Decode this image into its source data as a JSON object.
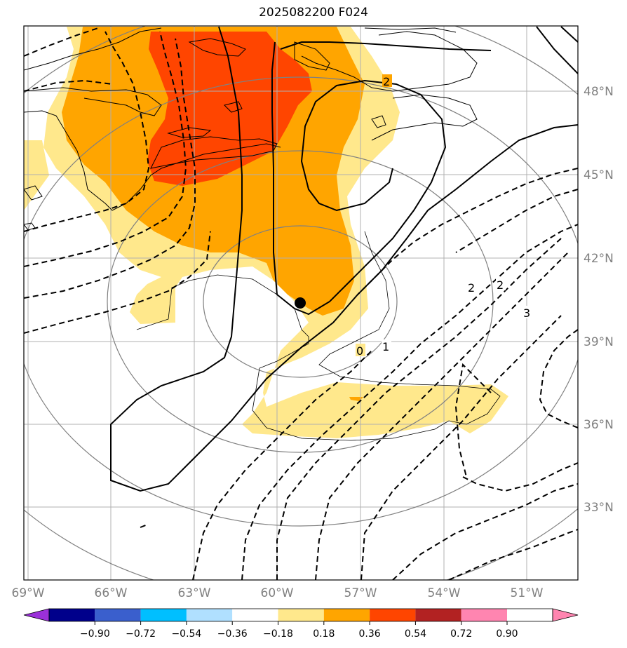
{
  "title": "2025082200 F024",
  "map": {
    "lon_ticks": [
      "69°W",
      "66°W",
      "63°W",
      "60°W",
      "57°W",
      "54°W",
      "51°W"
    ],
    "lat_ticks": [
      "48°N",
      "45°N",
      "42°N",
      "39°N",
      "36°N",
      "33°N"
    ],
    "marker": {
      "lon": -59.1,
      "lat": 40.4,
      "color": "#000000"
    }
  },
  "colorbar": {
    "levels": [
      "−0.90",
      "−0.72",
      "−0.54",
      "−0.36",
      "−0.18",
      "0.18",
      "0.36",
      "0.54",
      "0.72",
      "0.90"
    ],
    "colors": [
      "#9b30d9",
      "#00008b",
      "#3a5fcd",
      "#00bfff",
      "#b0e0ff",
      "#ffffff",
      "#ffe88c",
      "#ffa500",
      "#ff4500",
      "#b22222",
      "#ff85b0"
    ]
  },
  "contour_labels": [
    "0",
    "1",
    "2",
    "2",
    "2",
    "3"
  ],
  "colors": {
    "fill_light": "#ffe88c",
    "fill_orange": "#ffa500",
    "fill_red": "#ff4500",
    "gridline": "#b0b0b0",
    "tick_text": "#808080"
  }
}
